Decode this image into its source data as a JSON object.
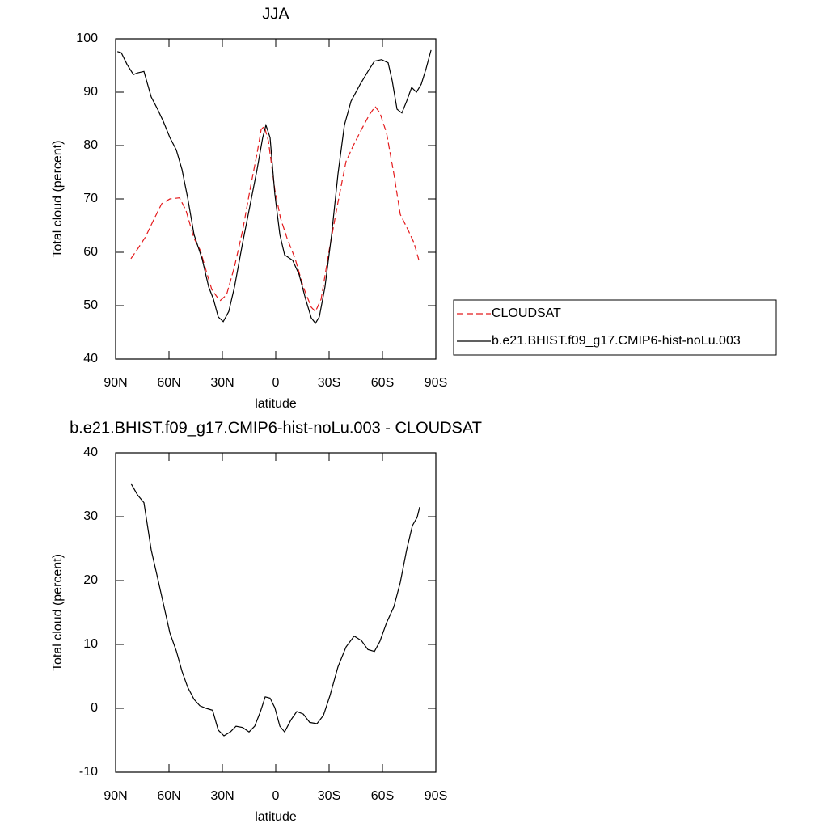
{
  "chart_data": [
    {
      "type": "line",
      "title": "JJA",
      "xlabel": "latitude",
      "ylabel": "Total cloud (percent)",
      "xlim": [
        90,
        -90
      ],
      "ylim": [
        40,
        100
      ],
      "xticks": [
        {
          "value": 90,
          "label": "90N"
        },
        {
          "value": 60,
          "label": "60N"
        },
        {
          "value": 30,
          "label": "30N"
        },
        0,
        {
          "value": -30,
          "label": "30S"
        },
        {
          "value": -60,
          "label": "60S"
        },
        {
          "value": -90,
          "label": "90S"
        }
      ],
      "yticks": [
        40,
        50,
        60,
        70,
        80,
        90,
        100
      ],
      "legend": "right",
      "series": [
        {
          "name": "CLOUDSAT",
          "color": "#e41a1c",
          "dashed": true,
          "x": [
            81.4,
            77.7,
            73.2,
            68.6,
            64.1,
            59.5,
            54.1,
            50.5,
            45.9,
            42.3,
            39.1,
            35.9,
            31.4,
            27.7,
            23.2,
            18.6,
            14.1,
            10.5,
            8.2,
            6.4,
            4.1,
            0.5,
            -2.7,
            -6.4,
            -10.9,
            -15.5,
            -20,
            -22.3,
            -25.5,
            -30,
            -35,
            -39.5,
            -43.6,
            -48.2,
            -52.7,
            -55.9,
            -58.6,
            -62.3,
            -66.4,
            -70,
            -74.5,
            -77.7,
            -80.5
          ],
          "values": [
            58.8,
            60.6,
            62.9,
            66.1,
            69.1,
            70.0,
            70.2,
            67.9,
            62.6,
            60.3,
            56.5,
            53.0,
            50.9,
            52.0,
            57.3,
            64.1,
            72.4,
            78.5,
            83.0,
            83.6,
            80.8,
            71.7,
            66.4,
            62.6,
            58.8,
            53.5,
            49.7,
            48.9,
            51.2,
            60.3,
            69.4,
            77.0,
            80.0,
            83.0,
            85.8,
            87.3,
            86.1,
            82.3,
            74.7,
            67.1,
            64.1,
            61.8,
            58.5
          ]
        },
        {
          "name": "b.e21.BHIST.f09_g17.CMIP6-hist-noLu.003",
          "color": "#000000",
          "dashed": false,
          "x": [
            89,
            86.8,
            83.6,
            80,
            77.7,
            74.1,
            70,
            66.4,
            63.2,
            59.5,
            55.9,
            52.7,
            49.5,
            45.9,
            41.4,
            37.7,
            35,
            32.3,
            29.5,
            26.4,
            23.2,
            18.6,
            14.1,
            10.5,
            7.3,
            5.5,
            3.2,
            0.5,
            -2.3,
            -5,
            -9.5,
            -13.2,
            -16.8,
            -20,
            -22.3,
            -24.5,
            -27.7,
            -31.4,
            -35,
            -38.6,
            -42.3,
            -47.3,
            -51.8,
            -55.5,
            -59.5,
            -63.2,
            -65.5,
            -68.2,
            -70.9,
            -73.6,
            -76.4,
            -79.1,
            -81.8,
            -84.5,
            -87.3
          ],
          "values": [
            97.6,
            97.4,
            95.2,
            93.3,
            93.6,
            93.9,
            89.1,
            86.8,
            84.5,
            81.5,
            79.2,
            75.5,
            70.2,
            63.3,
            58.8,
            53.5,
            51.2,
            47.9,
            47.0,
            48.9,
            53.5,
            61.8,
            69.4,
            75.5,
            81.5,
            83.8,
            81.5,
            70.9,
            63.3,
            59.5,
            58.5,
            55.8,
            51.2,
            47.7,
            46.7,
            47.9,
            53.5,
            63.3,
            74.7,
            83.8,
            88.3,
            91.4,
            93.9,
            95.8,
            96.1,
            95.5,
            92.1,
            86.8,
            86.1,
            88.3,
            90.9,
            90.0,
            91.5,
            94.4,
            97.9
          ]
        }
      ]
    },
    {
      "type": "line",
      "title": "b.e21.BHIST.f09_g17.CMIP6-hist-noLu.003 - CLOUDSAT",
      "xlabel": "latitude",
      "ylabel": "Total cloud (percent)",
      "xlim": [
        90,
        -90
      ],
      "ylim": [
        -10,
        40
      ],
      "xticks": [
        {
          "value": 90,
          "label": "90N"
        },
        {
          "value": 60,
          "label": "60N"
        },
        {
          "value": 30,
          "label": "30N"
        },
        0,
        {
          "value": -30,
          "label": "30S"
        },
        {
          "value": -60,
          "label": "60S"
        },
        {
          "value": -90,
          "label": "90S"
        }
      ],
      "yticks": [
        -10,
        0,
        10,
        20,
        30,
        40
      ],
      "series": [
        {
          "color": "#000000",
          "dashed": false,
          "x": [
            81.4,
            77.7,
            74.1,
            70,
            66.4,
            61.8,
            59.5,
            55.9,
            52.7,
            49.5,
            45.9,
            42.7,
            39.1,
            35.5,
            32.3,
            29.1,
            25.5,
            22.3,
            18.6,
            15,
            11.8,
            8.6,
            5.9,
            3.2,
            0.5,
            -2.3,
            -5,
            -8.6,
            -11.8,
            -15.5,
            -19.1,
            -23.2,
            -26.8,
            -30.5,
            -35,
            -39.5,
            -44.1,
            -48.2,
            -51.8,
            -55.5,
            -58.6,
            -62.3,
            -66.4,
            -70,
            -73.6,
            -76.8,
            -79.5,
            -80.9
          ],
          "values": [
            35.2,
            33.4,
            32.2,
            24.8,
            20.4,
            14.7,
            11.8,
            9.0,
            5.8,
            3.3,
            1.4,
            0.4,
            0.0,
            -0.3,
            -3.4,
            -4.3,
            -3.7,
            -2.8,
            -3.0,
            -3.7,
            -2.8,
            -0.5,
            1.8,
            1.6,
            0.1,
            -2.8,
            -3.7,
            -1.8,
            -0.5,
            -0.9,
            -2.2,
            -2.4,
            -1.1,
            2.0,
            6.5,
            9.6,
            11.3,
            10.6,
            9.2,
            8.9,
            10.5,
            13.4,
            15.9,
            19.7,
            24.8,
            28.6,
            29.9,
            31.5
          ]
        }
      ]
    }
  ]
}
